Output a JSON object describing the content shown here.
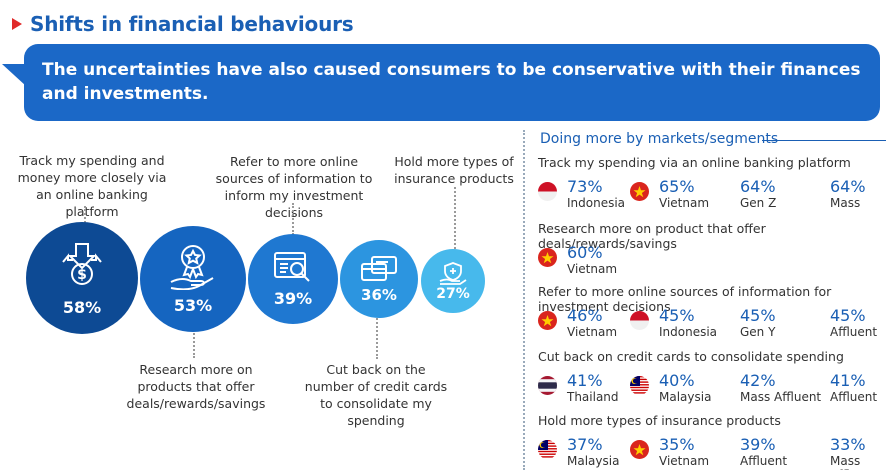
{
  "header": {
    "title": "Shifts in financial behaviours"
  },
  "banner": {
    "text": "The uncertainties have also caused consumers to be conservative with their finances and investments."
  },
  "behaviours": [
    {
      "label": "Track my spending and money more closely via an online banking platform",
      "pct": "58%",
      "icon": "money-tracking-icon"
    },
    {
      "label": "Research more on products that offer deals/rewards/savings",
      "pct": "53%",
      "icon": "award-hand-icon"
    },
    {
      "label": "Refer to more online sources of information to inform my investment decisions",
      "pct": "39%",
      "icon": "online-research-icon"
    },
    {
      "label": "Cut back on the number of credit cards to consolidate my spending",
      "pct": "36%",
      "icon": "credit-cards-icon"
    },
    {
      "label": "Hold more types of insurance products",
      "pct": "27%",
      "icon": "insurance-hand-icon"
    }
  ],
  "markets": {
    "title": "Doing more by markets/segments",
    "sections": [
      {
        "title": "Track my spending via an online banking platform",
        "items": [
          {
            "pct": "73%",
            "name": "Indonesia",
            "flag": "indonesia"
          },
          {
            "pct": "65%",
            "name": "Vietnam",
            "flag": "vietnam"
          },
          {
            "pct": "64%",
            "name": "Gen Z",
            "flag": ""
          },
          {
            "pct": "64%",
            "name": "Mass",
            "flag": ""
          }
        ]
      },
      {
        "title": "Research more on product that offer deals/rewards/savings",
        "items": [
          {
            "pct": "60%",
            "name": "Vietnam",
            "flag": "vietnam"
          }
        ]
      },
      {
        "title": "Refer to more online sources of information for investment decisions",
        "items": [
          {
            "pct": "46%",
            "name": "Vietnam",
            "flag": "vietnam"
          },
          {
            "pct": "45%",
            "name": "Indonesia",
            "flag": "indonesia"
          },
          {
            "pct": "45%",
            "name": "Gen Y",
            "flag": ""
          },
          {
            "pct": "45%",
            "name": "Affluent",
            "flag": ""
          }
        ]
      },
      {
        "title": "Cut back on credit cards to consolidate spending",
        "items": [
          {
            "pct": "41%",
            "name": "Thailand",
            "flag": "thailand"
          },
          {
            "pct": "40%",
            "name": "Malaysia",
            "flag": "malaysia"
          },
          {
            "pct": "42%",
            "name": "Mass Affluent",
            "flag": ""
          },
          {
            "pct": "41%",
            "name": "Affluent",
            "flag": ""
          }
        ]
      },
      {
        "title": "Hold more types of insurance products",
        "items": [
          {
            "pct": "37%",
            "name": "Malaysia",
            "flag": "malaysia"
          },
          {
            "pct": "35%",
            "name": "Vietnam",
            "flag": "vietnam"
          },
          {
            "pct": "39%",
            "name": "Affluent",
            "flag": ""
          },
          {
            "pct": "33%",
            "name": "Mass Affluent",
            "flag": ""
          }
        ]
      }
    ]
  },
  "colors": {
    "primary": "#1b68c7",
    "circle1": "#0d4a94",
    "circle2": "#1565c0",
    "circle3": "#1f78d1",
    "circle4": "#2c95e0",
    "circle5": "#47b9ec",
    "accent_red": "#e02a2a"
  }
}
